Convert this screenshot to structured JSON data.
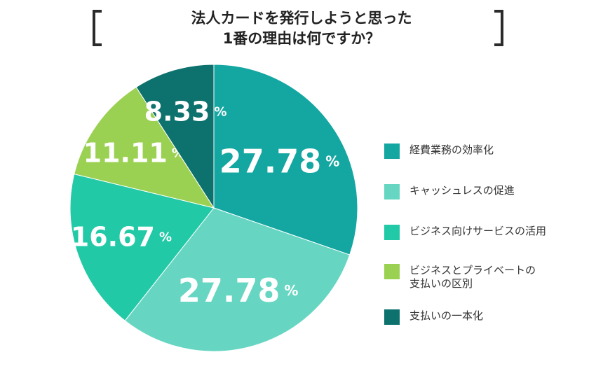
{
  "title": {
    "line1": "法人カードを発行しようと思った",
    "line2": "1番の理由は何ですか？"
  },
  "chart_data": {
    "type": "pie",
    "unit": "%",
    "slices": [
      {
        "label": "経費業務の効率化",
        "value": 27.78,
        "value_text": "27.78",
        "color": "#14a6a1"
      },
      {
        "label": "キャッシュレスの促進",
        "value": 27.78,
        "value_text": "27.78",
        "color": "#66d6c2"
      },
      {
        "label": "ビジネス向けサービスの活用",
        "value": 16.67,
        "value_text": "16.67",
        "color": "#22c9a6"
      },
      {
        "label": "ビジネスとプライベートの支払いの区別",
        "value": 11.11,
        "value_text": "11.11",
        "color": "#9bd152"
      },
      {
        "label": "支払いの一本化",
        "value": 8.33,
        "value_text": "8.33",
        "color": "#0d716d"
      }
    ],
    "start_angle": "12 o'clock",
    "direction": "clockwise",
    "legend_position": "right"
  },
  "legend": {
    "items": [
      {
        "lines": [
          "経費業務の効率化"
        ],
        "color": "#14a6a1"
      },
      {
        "lines": [
          "キャッシュレスの促進"
        ],
        "color": "#66d6c2"
      },
      {
        "lines": [
          "ビジネス向けサービスの活用"
        ],
        "color": "#22c9a6"
      },
      {
        "lines": [
          "ビジネスとプライベートの",
          "支払いの区別"
        ],
        "color": "#9bd152"
      },
      {
        "lines": [
          "支払いの一本化"
        ],
        "color": "#0d716d"
      }
    ]
  }
}
